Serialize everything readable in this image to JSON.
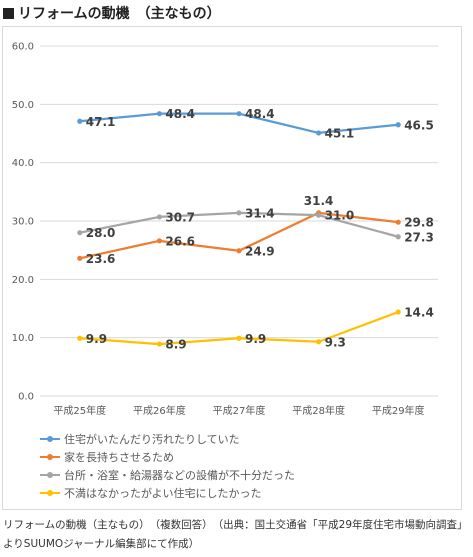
{
  "heading": "リフォームの動機　（主なもの）",
  "colors": {
    "background": "#ffffff",
    "grid": "#d9d9d9",
    "border": "#d9d9d9"
  },
  "chart_data": {
    "type": "line",
    "title": "リフォームの動機　（主なもの）",
    "categories": [
      "平成25年度",
      "平成26年度",
      "平成27年度",
      "平成28年度",
      "平成29年度"
    ],
    "ylim": [
      0,
      60
    ],
    "yticks": [
      "0.0",
      "10.0",
      "20.0",
      "30.0",
      "40.0",
      "50.0",
      "60.0"
    ],
    "grid": true,
    "legend_position": "bottom-left",
    "series": [
      {
        "name": "住宅がいたんだり汚れたりしていた",
        "color": "#5b9bd5",
        "values": [
          47.1,
          48.4,
          48.4,
          45.1,
          46.5
        ],
        "labels": [
          "47.1",
          "48.4",
          "48.4",
          "45.1",
          "46.5"
        ]
      },
      {
        "name": "家を長持ちさせるため",
        "color": "#ed7d31",
        "values": [
          23.6,
          26.6,
          24.9,
          31.4,
          29.8
        ],
        "labels": [
          "23.6",
          "26.6",
          "24.9",
          "31.4",
          "29.8"
        ]
      },
      {
        "name": "台所・浴室・給湯器などの設備が不十分だった",
        "color": "#a5a5a5",
        "values": [
          28.0,
          30.7,
          31.4,
          31.0,
          27.3
        ],
        "labels": [
          "28.0",
          "30.7",
          "31.4",
          "31.0",
          "27.3"
        ]
      },
      {
        "name": "不満はなかったがよい住宅にしたかった",
        "color": "#ffc000",
        "values": [
          9.9,
          8.9,
          9.9,
          9.3,
          14.4
        ],
        "labels": [
          "9.9",
          "8.9",
          "9.9",
          "9.3",
          "14.4"
        ]
      }
    ]
  },
  "caption": "リフォームの動機（主なもの）　（複数回答）　（出典：国土交通省「平成29年度住宅市場動向調査」よりSUUMOジャーナル編集部にて作成）"
}
